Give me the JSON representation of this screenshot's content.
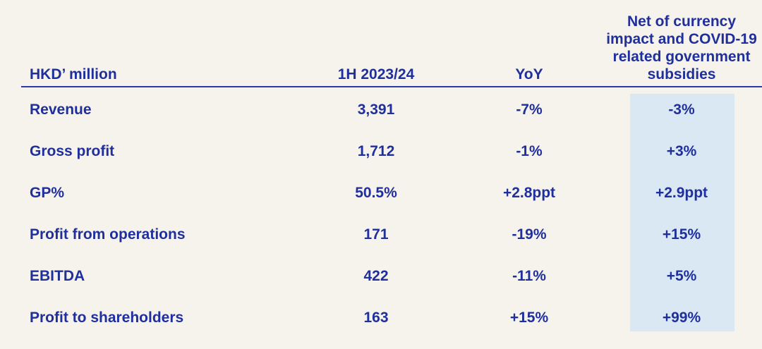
{
  "table": {
    "header": [
      "HKD’ million",
      "1H 2023/24",
      "YoY",
      [
        "Net of currency",
        "impact and COVID-19",
        "related government",
        "subsidies"
      ]
    ],
    "rows": [
      [
        "Revenue",
        "3,391",
        "-7%",
        "-3%"
      ],
      [
        "Gross profit",
        "1,712",
        "-1%",
        "+3%"
      ],
      [
        "GP%",
        "50.5%",
        "+2.8ppt",
        "+2.9ppt"
      ],
      [
        "Profit from operations",
        "171",
        "-19%",
        "+15%"
      ],
      [
        "EBITDA",
        "422",
        "-11%",
        "+5%"
      ],
      [
        "Profit to shareholders",
        "163",
        "+15%",
        "+99%"
      ]
    ]
  }
}
